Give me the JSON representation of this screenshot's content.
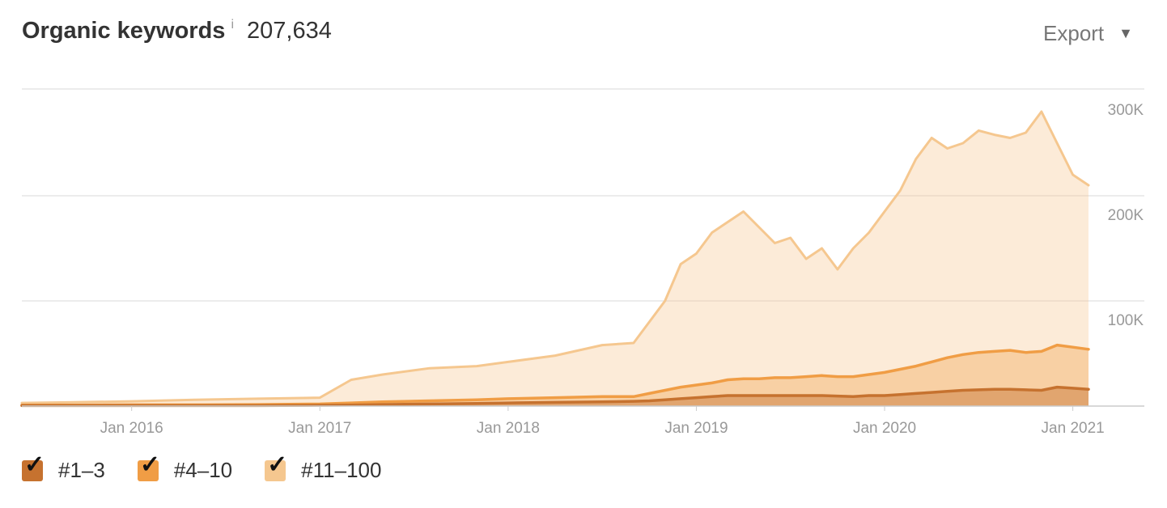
{
  "header": {
    "title": "Organic keywords",
    "info": "i",
    "count": "207,634",
    "export_label": "Export",
    "export_icon": "caret-down-icon"
  },
  "colors": {
    "s1": "#c6722f",
    "s2": "#f09d45",
    "s3": "#f5c78f",
    "grid": "#e6e6e6",
    "axis_text": "#999999"
  },
  "chart_data": {
    "type": "area",
    "title": "",
    "xlabel": "",
    "ylabel": "",
    "stacked": false,
    "x_ticks": [
      "Jan 2016",
      "Jan 2017",
      "Jan 2018",
      "Jan 2019",
      "Jan 2020",
      "Jan 2021"
    ],
    "y_ticks": [
      "100K",
      "200K",
      "300K"
    ],
    "ylim": [
      0,
      300000
    ],
    "grid": true,
    "legend_position": "bottom-left",
    "x": [
      "2015-06",
      "2015-09",
      "2016-01",
      "2016-05",
      "2016-09",
      "2017-01",
      "2017-03",
      "2017-05",
      "2017-08",
      "2017-11",
      "2018-01",
      "2018-04",
      "2018-07",
      "2018-09",
      "2018-10",
      "2018-11",
      "2018-12",
      "2019-01",
      "2019-02",
      "2019-03",
      "2019-04",
      "2019-05",
      "2019-06",
      "2019-07",
      "2019-08",
      "2019-09",
      "2019-10",
      "2019-11",
      "2019-12",
      "2020-01",
      "2020-02",
      "2020-03",
      "2020-04",
      "2020-05",
      "2020-06",
      "2020-07",
      "2020-08",
      "2020-09",
      "2020-10",
      "2020-11",
      "2020-12",
      "2021-01",
      "2021-02"
    ],
    "series": [
      {
        "name": "#1–3",
        "values": [
          500,
          500,
          500,
          500,
          500,
          800,
          1000,
          1500,
          2000,
          2500,
          3000,
          3500,
          4000,
          4500,
          5000,
          6000,
          7000,
          8000,
          9000,
          10000,
          10000,
          10000,
          10000,
          10000,
          10000,
          10000,
          9500,
          9000,
          10000,
          10000,
          11000,
          12000,
          13000,
          14000,
          15000,
          15500,
          16000,
          16000,
          15500,
          15000,
          18000,
          17000,
          16000
        ]
      },
      {
        "name": "#4–10",
        "values": [
          1000,
          1000,
          1200,
          1200,
          1500,
          2000,
          3000,
          4000,
          5000,
          6000,
          7000,
          8000,
          9000,
          9000,
          12000,
          15000,
          18000,
          20000,
          22000,
          25000,
          26000,
          26000,
          27000,
          27000,
          28000,
          29000,
          28000,
          28000,
          30000,
          32000,
          35000,
          38000,
          42000,
          46000,
          49000,
          51000,
          52000,
          53000,
          51000,
          52000,
          58000,
          56000,
          54000
        ]
      },
      {
        "name": "#11–100",
        "values": [
          3000,
          3500,
          4500,
          6000,
          7000,
          8000,
          25000,
          30000,
          36000,
          38000,
          42000,
          48000,
          58000,
          60000,
          80000,
          100000,
          135000,
          145000,
          165000,
          175000,
          185000,
          170000,
          155000,
          160000,
          140000,
          150000,
          130000,
          150000,
          165000,
          185000,
          205000,
          235000,
          255000,
          245000,
          250000,
          262000,
          258000,
          255000,
          260000,
          280000,
          250000,
          220000,
          210000
        ]
      }
    ]
  },
  "legend": [
    {
      "label": "#1–3",
      "check": "✓"
    },
    {
      "label": "#4–10",
      "check": "✓"
    },
    {
      "label": "#11–100",
      "check": "✓"
    }
  ]
}
